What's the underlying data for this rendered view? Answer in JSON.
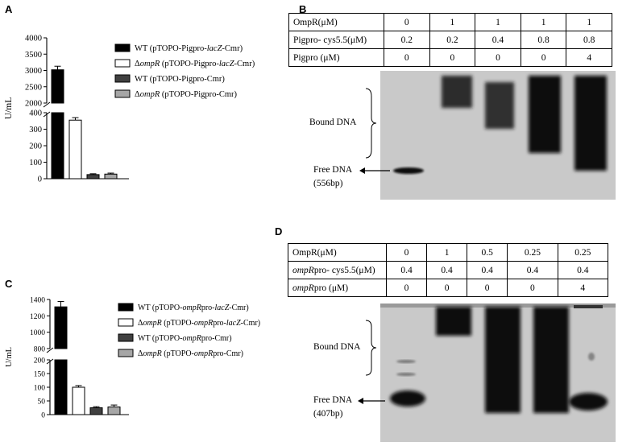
{
  "panels": {
    "A": {
      "letter": "A",
      "chart_data": {
        "type": "bar",
        "ylabel": "U/mL",
        "broken_axis": true,
        "upper_ticks": [
          "4000",
          "3500",
          "3000",
          "2500",
          "2000"
        ],
        "lower_ticks": [
          "400",
          "300",
          "200",
          "100",
          "0"
        ],
        "upper_ylim": [
          2000,
          4000
        ],
        "lower_ylim": [
          0,
          400
        ],
        "categories": [
          "WT (pTOPO-Pigpro-lacZ-Cmr)",
          "ΔompR (pTOPO-Pigpro-lacZ-Cmr)",
          "WT (pTOPO-Pigpro-Cmr)",
          "ΔompR (pTOPO-Pigpro-Cmr)"
        ],
        "values": [
          3020,
          355,
          25,
          28
        ],
        "errors": [
          110,
          15,
          5,
          6
        ],
        "colors": [
          "#000000",
          "#ffffff",
          "#404040",
          "#a6a6a6"
        ],
        "legend": [
          {
            "prefix": "WT",
            "body": " (pTOPO-Pigpro-",
            "em": "lacZ",
            "tail": "-Cmr)"
          },
          {
            "prefix": "Δ",
            "em0": "ompR",
            "body": " (pTOPO-Pigpro-",
            "em": "lacZ",
            "tail": "-Cmr)"
          },
          {
            "prefix": "WT",
            "body": " (pTOPO-Pigpro-Cmr)",
            "em": "",
            "tail": ""
          },
          {
            "prefix": "Δ",
            "em0": "ompR",
            "body": " (pTOPO-Pigpro-Cmr)",
            "em": "",
            "tail": ""
          }
        ]
      }
    },
    "B": {
      "letter": "B",
      "table": [
        {
          "label": "OmpR(μM)",
          "values": [
            "0",
            "1",
            "1",
            "1",
            "1"
          ]
        },
        {
          "label": "Pigpro- cys5.5(μM)",
          "values": [
            "0.2",
            "0.2",
            "0.4",
            "0.8",
            "0.8"
          ]
        },
        {
          "label": "Pigpro (μM)",
          "values": [
            "0",
            "0",
            "0",
            "0",
            "4"
          ]
        }
      ],
      "bound_label": "Bound DNA",
      "free_label_line1": "Free DNA",
      "free_label_line2": "(556bp)"
    },
    "C": {
      "letter": "C",
      "chart_data": {
        "type": "bar",
        "ylabel": "U/mL",
        "broken_axis": true,
        "upper_ticks": [
          "1400",
          "1200",
          "1000",
          "800"
        ],
        "lower_ticks": [
          "200",
          "150",
          "100",
          "50",
          "0"
        ],
        "upper_ylim": [
          800,
          1400
        ],
        "lower_ylim": [
          0,
          200
        ],
        "categories": [
          "WT (pTOPO-ompRpro-lacZ-Cmr)",
          "ΔompR (pTOPO-ompRpro-lacZ-Cmr)",
          "WT (pTOPO-ompRpro-Cmr)",
          "ΔompR (pTOPO-ompRpro-Cmr)"
        ],
        "values": [
          1310,
          100,
          25,
          28
        ],
        "errors": [
          65,
          6,
          4,
          7
        ],
        "colors": [
          "#000000",
          "#ffffff",
          "#404040",
          "#a6a6a6"
        ],
        "legend": [
          {
            "prefix": "WT",
            "body": " (pTOPO-",
            "em": "ompR",
            "tail": "pro-",
            "em2": "lacZ",
            "tail2": "-Cmr)"
          },
          {
            "prefix": "Δ",
            "em0": "ompR",
            "body": " (pTOPO-",
            "em": "ompR",
            "tail": "pro-",
            "em2": "lacZ",
            "tail2": "-Cmr)"
          },
          {
            "prefix": "WT",
            "body": " (pTOPO-",
            "em": "ompR",
            "tail": "pro-Cmr)"
          },
          {
            "prefix": "Δ",
            "em0": "ompR",
            "body": " (pTOPO-",
            "em": "ompR",
            "tail": "pro-Cmr)"
          }
        ]
      }
    },
    "D": {
      "letter": "D",
      "table": [
        {
          "label": "OmpR(μM)",
          "values": [
            "0",
            "1",
            "0.5",
            "0.25",
            "0.25"
          ]
        },
        {
          "label_em": "ompR",
          "label_tail": "pro- cys5.5(μM)",
          "values": [
            "0.4",
            "0.4",
            "0.4",
            "0.4",
            "0.4"
          ]
        },
        {
          "label_em": "ompR",
          "label_tail": "pro (μM)",
          "values": [
            "0",
            "0",
            "0",
            "0",
            "4"
          ]
        }
      ],
      "bound_label": "Bound DNA",
      "free_label_line1": "Free DNA",
      "free_label_line2": "(407bp)"
    }
  }
}
